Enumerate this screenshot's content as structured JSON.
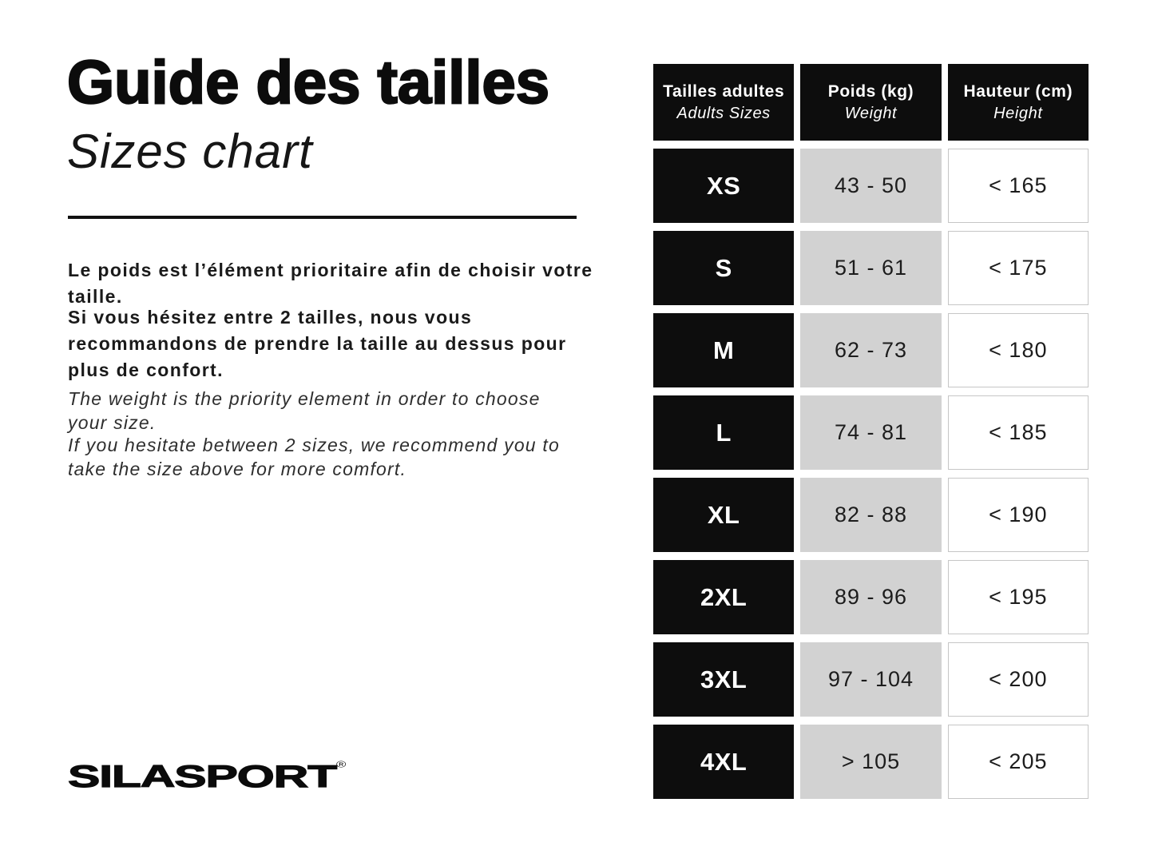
{
  "left": {
    "title_fr": "Guide des tailles",
    "title_en": "Sizes chart",
    "paragraphs_fr": [
      "Le poids est l’élément prioritaire afin de choisir votre taille.",
      "Si vous hésitez entre 2 tailles, nous vous recommandons de prendre la taille au dessus pour plus de confort."
    ],
    "paragraphs_en": [
      "The weight is the priority element in order to choose your size.",
      "If you hesitate between 2 sizes, we recommend you to take the size above for more comfort."
    ],
    "logo_text": "SILASPORT",
    "logo_reg": "®"
  },
  "table": {
    "headers": [
      {
        "fr": "Tailles adultes",
        "en": "Adults Sizes"
      },
      {
        "fr": "Poids (kg)",
        "en": "Weight"
      },
      {
        "fr": "Hauteur (cm)",
        "en": "Height"
      }
    ],
    "rows": [
      {
        "size": "XS",
        "weight": "43 - 50",
        "height": "< 165"
      },
      {
        "size": "S",
        "weight": "51 - 61",
        "height": "< 175"
      },
      {
        "size": "M",
        "weight": "62 - 73",
        "height": "< 180"
      },
      {
        "size": "L",
        "weight": "74 - 81",
        "height": "< 185"
      },
      {
        "size": "XL",
        "weight": "82 - 88",
        "height": "< 190"
      },
      {
        "size": "2XL",
        "weight": "89 - 96",
        "height": "< 195"
      },
      {
        "size": "3XL",
        "weight": "97 - 104",
        "height": "< 200"
      },
      {
        "size": "4XL",
        "weight": "> 105",
        "height": "< 205"
      }
    ]
  },
  "colors": {
    "background": "#ffffff",
    "cell_black": "#0d0d0d",
    "cell_gray": "#d2d2d2",
    "cell_border": "#c6c6c6",
    "text_dark": "#1c1c1c"
  },
  "chart_data": {
    "type": "table",
    "title": "Guide des tailles / Sizes chart",
    "columns": [
      "Tailles adultes / Adults Sizes",
      "Poids (kg) / Weight",
      "Hauteur (cm) / Height"
    ],
    "rows": [
      [
        "XS",
        "43 - 50",
        "< 165"
      ],
      [
        "S",
        "51 - 61",
        "< 175"
      ],
      [
        "M",
        "62 - 73",
        "< 180"
      ],
      [
        "L",
        "74 - 81",
        "< 185"
      ],
      [
        "XL",
        "82 - 88",
        "< 190"
      ],
      [
        "2XL",
        "89 - 96",
        "< 195"
      ],
      [
        "3XL",
        "97 - 104",
        "< 200"
      ],
      [
        "4XL",
        "> 105",
        "< 205"
      ]
    ]
  }
}
